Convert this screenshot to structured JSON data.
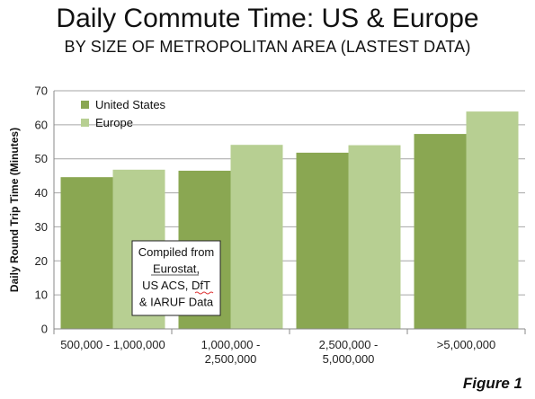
{
  "chart_data": {
    "type": "bar",
    "title": "Daily Commute Time: US & Europe",
    "subtitle": "BY SIZE OF METROPOLITAN AREA (LASTEST DATA)",
    "ylabel": "Daily Round Trip Time (Minutes)",
    "xlabel": "",
    "ylim": [
      0,
      70
    ],
    "yticks": [
      0,
      10,
      20,
      30,
      40,
      50,
      60,
      70
    ],
    "grid": true,
    "legend_position": "top-left",
    "categories": [
      [
        "500,000 - 1,000,000"
      ],
      [
        "1,000,000 -",
        "2,500,000"
      ],
      [
        "2,500,000 -",
        "5,000,000"
      ],
      [
        ">5,000,000"
      ]
    ],
    "series": [
      {
        "name": "United States",
        "color": "#8aa752",
        "values": [
          44.6,
          46.5,
          51.8,
          57.3
        ]
      },
      {
        "name": "Europe",
        "color": "#b7cf92",
        "values": [
          46.8,
          54.1,
          54.0,
          63.9
        ]
      }
    ],
    "annotation": {
      "lines": [
        "Compiled from",
        "Eurostat,",
        "US ACS, DfT",
        "& IARUF Data"
      ]
    }
  },
  "figure_label": "Figure 1"
}
